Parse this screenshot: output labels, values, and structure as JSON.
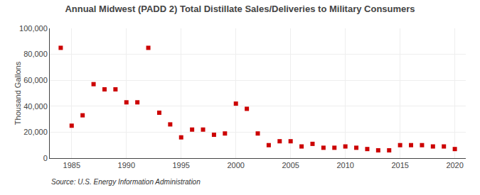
{
  "chart_data": {
    "type": "scatter",
    "title": "Annual Midwest (PADD 2) Total Distillate Sales/Deliveries to Military Consumers",
    "ylabel": "Thousand Gallons",
    "annotations": [
      "Source: U.S. Energy Information Administration"
    ],
    "color": "#cc0000",
    "marker": "square",
    "grid": true,
    "xlim": [
      1983,
      2021
    ],
    "xticks": [
      1985,
      1990,
      1995,
      2000,
      2005,
      2010,
      2015,
      2020
    ],
    "ylim": [
      0,
      100000
    ],
    "yticks": [
      0,
      {
        "value": 20000,
        "label": "20,000"
      },
      {
        "value": 40000,
        "label": "40,000"
      },
      {
        "value": 60000,
        "label": "60,000"
      },
      {
        "value": 80000,
        "label": "80,000"
      },
      {
        "value": 100000,
        "label": "100,000"
      }
    ],
    "x": [
      1984,
      1985,
      1986,
      1987,
      1988,
      1989,
      1990,
      1991,
      1992,
      1993,
      1994,
      1995,
      1996,
      1997,
      1998,
      1999,
      2000,
      2001,
      2002,
      2003,
      2004,
      2005,
      2006,
      2007,
      2008,
      2009,
      2010,
      2011,
      2012,
      2013,
      2014,
      2015,
      2016,
      2017,
      2018,
      2019,
      2020
    ],
    "values": [
      85000,
      25000,
      33000,
      57000,
      53000,
      53000,
      43000,
      43000,
      85000,
      35000,
      26000,
      16000,
      22000,
      22000,
      18000,
      19000,
      42000,
      38000,
      19000,
      10000,
      13000,
      13000,
      9000,
      11000,
      8000,
      8000,
      9000,
      8000,
      7000,
      6000,
      6000,
      10000,
      10000,
      10000,
      9000,
      9000,
      7000
    ]
  }
}
